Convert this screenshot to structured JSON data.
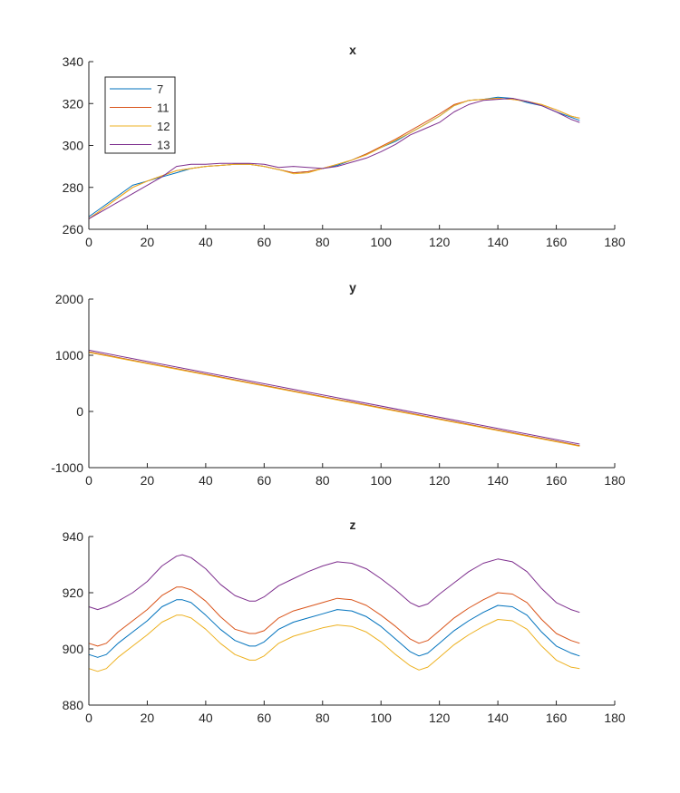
{
  "chart_data": [
    {
      "type": "line",
      "title": "x",
      "xlabel": "",
      "ylabel": "",
      "xlim": [
        0,
        180
      ],
      "ylim": [
        260,
        340
      ],
      "xticks": [
        0,
        20,
        40,
        60,
        80,
        100,
        120,
        140,
        160,
        180
      ],
      "yticks": [
        260,
        280,
        300,
        320,
        340
      ],
      "legend": {
        "position": "top-left",
        "entries": [
          "7",
          "11",
          "12",
          "13"
        ]
      },
      "x": [
        0,
        5,
        10,
        15,
        20,
        25,
        30,
        35,
        40,
        45,
        50,
        55,
        60,
        65,
        70,
        75,
        80,
        85,
        90,
        95,
        100,
        105,
        110,
        115,
        120,
        125,
        130,
        135,
        140,
        145,
        150,
        155,
        160,
        165,
        168
      ],
      "series": [
        {
          "name": "7",
          "color": "#0072BD",
          "values": [
            266,
            271,
            276,
            281,
            283,
            285,
            287,
            289,
            290,
            290.5,
            291,
            291,
            290,
            288.5,
            287,
            287.5,
            289,
            290.5,
            293,
            296,
            299,
            302,
            306,
            310,
            314,
            319,
            321.5,
            322,
            323,
            322.5,
            320.5,
            319,
            316,
            313.5,
            312
          ]
        },
        {
          "name": "11",
          "color": "#D95319",
          "values": [
            265,
            270,
            275,
            280,
            283,
            285.5,
            288,
            289,
            290,
            290.5,
            291,
            291,
            290,
            288.5,
            287,
            287.5,
            289,
            291,
            293,
            296,
            299.5,
            303,
            307,
            311,
            315,
            319.5,
            321.5,
            322,
            322.5,
            322,
            321,
            319.5,
            317,
            314,
            313
          ]
        },
        {
          "name": "12",
          "color": "#EDB120",
          "values": [
            265,
            270,
            275,
            280,
            283,
            285.5,
            288,
            289,
            290,
            290.5,
            291,
            291,
            290,
            288.5,
            286.5,
            287,
            289,
            291,
            293,
            295.5,
            299,
            302.5,
            306,
            310,
            314,
            319,
            321.5,
            322,
            322.5,
            322,
            321,
            319.5,
            317,
            314,
            313
          ]
        },
        {
          "name": "13",
          "color": "#7E2F8E",
          "values": [
            265,
            269,
            273,
            277,
            281,
            285,
            290,
            291,
            291,
            291.5,
            291.5,
            291.5,
            291,
            289.5,
            290,
            289.5,
            289,
            290,
            292,
            294,
            297,
            300.5,
            305,
            308,
            311,
            316,
            319.5,
            321.5,
            322,
            322.5,
            321,
            319,
            316,
            312.5,
            311
          ]
        }
      ]
    },
    {
      "type": "line",
      "title": "y",
      "xlabel": "",
      "ylabel": "",
      "xlim": [
        0,
        180
      ],
      "ylim": [
        -1000,
        2000
      ],
      "xticks": [
        0,
        20,
        40,
        60,
        80,
        100,
        120,
        140,
        160,
        180
      ],
      "yticks": [
        -1000,
        0,
        1000,
        2000
      ],
      "x": [
        0,
        168
      ],
      "series": [
        {
          "name": "7",
          "color": "#0072BD",
          "values": [
            1060,
            -610
          ]
        },
        {
          "name": "11",
          "color": "#D95319",
          "values": [
            1060,
            -610
          ]
        },
        {
          "name": "12",
          "color": "#EDB120",
          "values": [
            1050,
            -620
          ]
        },
        {
          "name": "13",
          "color": "#7E2F8E",
          "values": [
            1090,
            -580
          ]
        }
      ]
    },
    {
      "type": "line",
      "title": "z",
      "xlabel": "",
      "ylabel": "",
      "xlim": [
        0,
        180
      ],
      "ylim": [
        880,
        940
      ],
      "xticks": [
        0,
        20,
        40,
        60,
        80,
        100,
        120,
        140,
        160,
        180
      ],
      "yticks": [
        880,
        900,
        920,
        940
      ],
      "x": [
        0,
        3,
        6,
        10,
        15,
        20,
        25,
        30,
        32,
        35,
        40,
        45,
        50,
        55,
        57,
        60,
        65,
        70,
        75,
        80,
        85,
        90,
        95,
        100,
        105,
        110,
        113,
        116,
        120,
        125,
        130,
        135,
        140,
        145,
        150,
        155,
        160,
        165,
        168
      ],
      "series": [
        {
          "name": "7",
          "color": "#0072BD",
          "values": [
            898,
            897,
            898,
            902,
            906,
            910,
            915,
            917.5,
            917.5,
            916.5,
            912,
            907,
            903,
            901,
            901,
            902.5,
            907,
            909.5,
            911,
            912.5,
            914,
            913.5,
            911.5,
            908,
            903.5,
            899,
            897.5,
            898.5,
            902,
            906.5,
            910,
            913,
            915.5,
            915,
            912,
            906,
            901,
            898.5,
            897.5
          ]
        },
        {
          "name": "11",
          "color": "#D95319",
          "values": [
            902,
            901,
            902,
            906,
            910,
            914,
            919,
            922,
            922,
            921,
            917,
            911.5,
            907,
            905.5,
            905.5,
            906.5,
            911,
            913.5,
            915,
            916.5,
            918,
            917.5,
            915.5,
            912,
            908,
            903.5,
            902,
            903,
            906.5,
            911,
            914.5,
            917.5,
            920,
            919.5,
            916.5,
            910.5,
            905.5,
            903,
            902
          ]
        },
        {
          "name": "12",
          "color": "#EDB120",
          "values": [
            893,
            892,
            893,
            897,
            901,
            905,
            909.5,
            912,
            912,
            911,
            907,
            902,
            898,
            896,
            896,
            897.5,
            902,
            904.5,
            906,
            907.5,
            908.5,
            908,
            906,
            902.5,
            898,
            894,
            892.5,
            893.5,
            897,
            901.5,
            905,
            908,
            910.5,
            910,
            907,
            901,
            896,
            893.5,
            893
          ]
        },
        {
          "name": "13",
          "color": "#7E2F8E",
          "values": [
            915,
            914,
            915,
            917,
            920,
            924,
            929.5,
            933,
            933.5,
            932.5,
            928.5,
            923,
            919,
            917,
            917,
            918.5,
            922.5,
            925,
            927.5,
            929.5,
            931,
            930.5,
            928.5,
            925,
            921,
            916.5,
            915,
            916,
            919.5,
            923.5,
            927.5,
            930.5,
            932,
            931,
            927.5,
            921.5,
            916.5,
            914,
            913
          ]
        }
      ]
    }
  ]
}
